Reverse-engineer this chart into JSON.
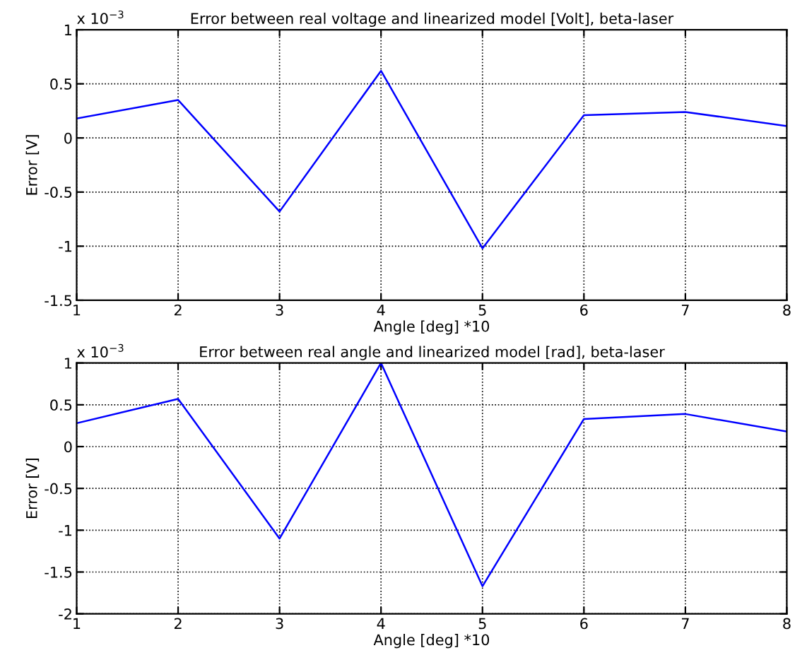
{
  "chart_data": [
    {
      "type": "line",
      "title": "Error between real voltage and linearized model [Volt], beta-laser",
      "xlabel": "Angle [deg] *10",
      "ylabel": "Error [V]",
      "annotations": [
        "x 10$^{−3}$"
      ],
      "x": [
        1,
        2,
        3,
        4,
        5,
        6,
        7,
        8
      ],
      "series": [
        {
          "color": "#0000ff",
          "values": [
            0.18,
            0.35,
            -0.68,
            0.62,
            -1.02,
            0.21,
            0.24,
            0.11
          ]
        }
      ],
      "xlim": [
        1,
        8
      ],
      "xticks": [
        1,
        2,
        3,
        4,
        5,
        6,
        7,
        8
      ],
      "ylim": [
        -1.5,
        1
      ],
      "yticks": [
        -1.5,
        -1,
        -0.5,
        0,
        0.5,
        1
      ],
      "grid": true,
      "line_style": "solid"
    },
    {
      "type": "line",
      "title": "Error between real angle and linearized model [rad], beta-laser",
      "xlabel": "Angle [deg] *10",
      "ylabel": "Error [V]",
      "annotations": [
        "x 10$^{−3}$"
      ],
      "x": [
        1,
        2,
        3,
        4,
        5,
        6,
        7,
        8
      ],
      "series": [
        {
          "color": "#0000ff",
          "values": [
            0.28,
            0.57,
            -1.1,
            1.0,
            -1.67,
            0.33,
            0.39,
            0.18
          ]
        }
      ],
      "xlim": [
        1,
        8
      ],
      "xticks": [
        1,
        2,
        3,
        4,
        5,
        6,
        7,
        8
      ],
      "ylim": [
        -2,
        1
      ],
      "yticks": [
        -2,
        -1.5,
        -1,
        -0.5,
        0,
        0.5,
        1
      ],
      "grid": true,
      "line_style": "solid"
    }
  ]
}
